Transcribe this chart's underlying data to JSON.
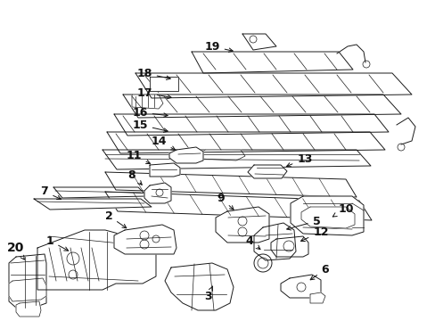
{
  "background_color": "#ffffff",
  "line_color": "#1a1a1a",
  "figsize": [
    4.89,
    3.6
  ],
  "dpi": 100,
  "label_data": [
    [
      1,
      0.075,
      0.415,
      0.115,
      0.43
    ],
    [
      2,
      0.155,
      0.47,
      0.185,
      0.482
    ],
    [
      3,
      0.24,
      0.095,
      0.255,
      0.115
    ],
    [
      4,
      0.33,
      0.255,
      0.345,
      0.268
    ],
    [
      5,
      0.365,
      0.2,
      0.385,
      0.218
    ],
    [
      6,
      0.415,
      0.178,
      0.435,
      0.188
    ],
    [
      7,
      0.065,
      0.49,
      0.098,
      0.5
    ],
    [
      8,
      0.17,
      0.535,
      0.198,
      0.545
    ],
    [
      9,
      0.31,
      0.455,
      0.328,
      0.462
    ],
    [
      10,
      0.465,
      0.472,
      0.445,
      0.482
    ],
    [
      11,
      0.175,
      0.59,
      0.205,
      0.598
    ],
    [
      12,
      0.395,
      0.408,
      0.375,
      0.415
    ],
    [
      13,
      0.355,
      0.545,
      0.335,
      0.555
    ],
    [
      14,
      0.195,
      0.62,
      0.218,
      0.628
    ],
    [
      15,
      0.175,
      0.65,
      0.21,
      0.658
    ],
    [
      16,
      0.185,
      0.668,
      0.215,
      0.676
    ],
    [
      17,
      0.215,
      0.718,
      0.248,
      0.726
    ],
    [
      18,
      0.232,
      0.758,
      0.268,
      0.766
    ],
    [
      19,
      0.288,
      0.808,
      0.322,
      0.818
    ],
    [
      20,
      0.032,
      0.36,
      0.06,
      0.37
    ]
  ]
}
